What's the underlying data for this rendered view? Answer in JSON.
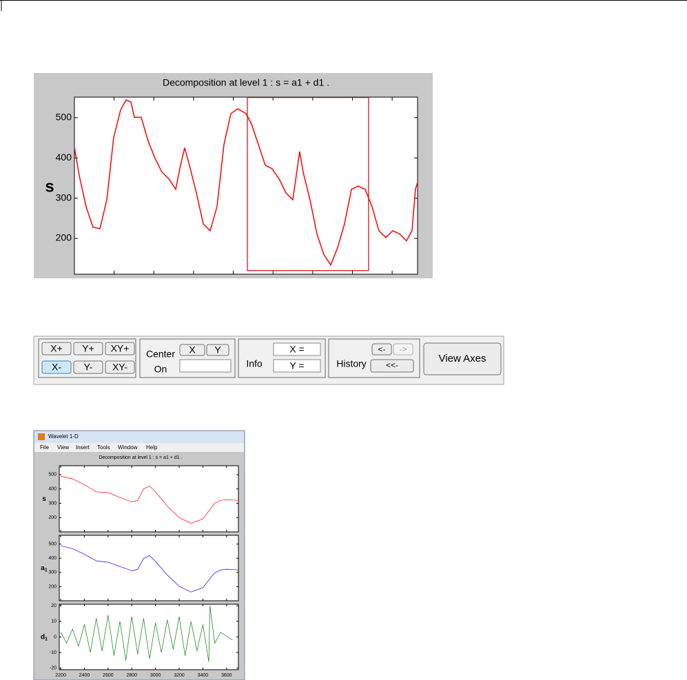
{
  "zoom_view": {
    "type": "line",
    "title": "Decomposition at level 1 : s = a1 + d1 .",
    "ylabel": "s",
    "color": "#ff0000",
    "xlim": [
      0,
      4320
    ],
    "ylim": [
      111,
      551
    ],
    "yticks": [
      200,
      300,
      400,
      500
    ],
    "xticks": [
      500,
      1000,
      1500,
      2000,
      2500,
      3000,
      3500,
      4000
    ],
    "x": [
      0,
      61,
      147,
      234,
      321,
      408,
      494,
      581,
      650,
      711,
      755,
      841,
      928,
      1015,
      1101,
      1188,
      1275,
      1336,
      1388,
      1448,
      1535,
      1622,
      1709,
      1795,
      1882,
      1969,
      2056,
      2160,
      2229,
      2316,
      2402,
      2489,
      2576,
      2663,
      2749,
      2836,
      2879,
      2966,
      3053,
      3140,
      3226,
      3313,
      3400,
      3487,
      3573,
      3660,
      3747,
      3833,
      3920,
      4007,
      4094,
      4180,
      4250,
      4293,
      4319
    ],
    "values": [
      426,
      356,
      279,
      228,
      224,
      296,
      450,
      519,
      544,
      539,
      501,
      501,
      442,
      399,
      365,
      348,
      322,
      382,
      425,
      382,
      313,
      236,
      219,
      279,
      433,
      510,
      522,
      510,
      484,
      433,
      382,
      373,
      348,
      313,
      296,
      416,
      365,
      296,
      211,
      160,
      134,
      177,
      236,
      322,
      330,
      322,
      279,
      219,
      202,
      219,
      211,
      194,
      219,
      322,
      339
    ],
    "selection": {
      "x": [
        2177,
        3703
      ],
      "y": [
        120,
        550
      ]
    }
  },
  "controls": {
    "zoom_buttons": [
      "X+",
      "Y+",
      "XY+",
      "X-",
      "Y-",
      "XY-"
    ],
    "center": {
      "label": "Center",
      "x": "X",
      "y": "Y",
      "on": "On"
    },
    "info": {
      "label": "Info",
      "x": "X =",
      "y": "Y ="
    },
    "history": {
      "label": "History",
      "back": "<-",
      "forward": "->",
      "first": "<<-"
    },
    "view_axes": "View Axes"
  },
  "window": {
    "title": "Wavelet 1-D",
    "menu": [
      "File",
      "View",
      "Insert",
      "Tools",
      "Window",
      "Help"
    ],
    "plot_title": "Decomposition at level 1 : s = a1 + d1 .",
    "xlim": [
      2188,
      3700
    ],
    "xticks": [
      2200,
      2400,
      2600,
      2800,
      3000,
      3200,
      3400,
      3600
    ],
    "panels": [
      {
        "type": "line",
        "ylabel": "s",
        "color": "#ff0000",
        "ylim": [
          100,
          562
        ],
        "yticks": [
          200,
          300,
          400,
          500
        ],
        "x": [
          2200,
          2300,
          2400,
          2500,
          2600,
          2700,
          2800,
          2850,
          2900,
          2950,
          3000,
          3100,
          3200,
          3300,
          3400,
          3500,
          3550,
          3600,
          3700
        ],
        "values": [
          490,
          470,
          430,
          380,
          375,
          340,
          310,
          320,
          400,
          420,
          380,
          280,
          200,
          160,
          190,
          300,
          320,
          325,
          320
        ]
      },
      {
        "type": "line",
        "ylabel": "a",
        "ylabel_sub": "1",
        "color": "#0000ff",
        "ylim": [
          100,
          562
        ],
        "yticks": [
          200,
          300,
          400,
          500
        ],
        "x": [
          2200,
          2300,
          2400,
          2500,
          2600,
          2700,
          2800,
          2850,
          2900,
          2950,
          3000,
          3100,
          3200,
          3300,
          3400,
          3500,
          3550,
          3600,
          3700
        ],
        "values": [
          488,
          468,
          428,
          382,
          372,
          342,
          312,
          322,
          398,
          418,
          378,
          282,
          202,
          162,
          192,
          298,
          318,
          323,
          318
        ]
      },
      {
        "type": "line",
        "ylabel": "d",
        "ylabel_sub": "1",
        "color": "#008000",
        "ylim": [
          -21,
          21
        ],
        "yticks": [
          -20,
          -10,
          0,
          10,
          20
        ],
        "x": [
          2200,
          2250,
          2300,
          2350,
          2400,
          2450,
          2500,
          2550,
          2600,
          2650,
          2700,
          2750,
          2800,
          2850,
          2900,
          2950,
          3000,
          3050,
          3100,
          3150,
          3200,
          3250,
          3300,
          3350,
          3400,
          3450,
          3460,
          3500,
          3550,
          3650
        ],
        "values": [
          3,
          -4,
          5,
          -6,
          8,
          -10,
          12,
          -9,
          14,
          -12,
          10,
          -15,
          13,
          -11,
          12,
          -14,
          9,
          -10,
          11,
          -8,
          13,
          -12,
          10,
          -9,
          8,
          -16,
          20,
          -4,
          3,
          -2
        ]
      }
    ]
  }
}
